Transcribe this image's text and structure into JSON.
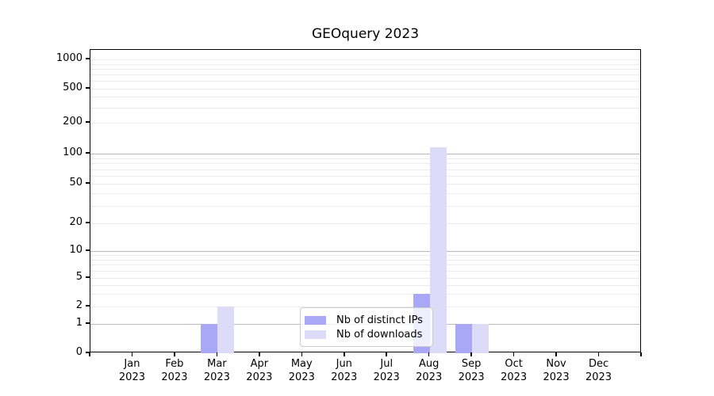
{
  "chart_data": {
    "type": "bar",
    "title": "GEOquery 2023",
    "year": "2023",
    "months": [
      "Jan",
      "Feb",
      "Mar",
      "Apr",
      "May",
      "Jun",
      "Jul",
      "Aug",
      "Sep",
      "Oct",
      "Nov",
      "Dec"
    ],
    "series": [
      {
        "name": "Nb of distinct IPs",
        "color": "#a8a8f6",
        "values": [
          0,
          0,
          1,
          0,
          0,
          0,
          0,
          3,
          1,
          0,
          0,
          0
        ]
      },
      {
        "name": "Nb of downloads",
        "color": "#dcdcf8",
        "values": [
          0,
          0,
          2,
          0,
          0,
          0,
          0,
          115,
          1,
          0,
          0,
          0
        ]
      }
    ],
    "y_axis": {
      "scale": "symlog",
      "ticks": [
        0,
        1,
        2,
        5,
        10,
        20,
        50,
        100,
        200,
        500,
        1000
      ],
      "major_grid_values": [
        1,
        10,
        100
      ],
      "range_top": 1000
    },
    "legend": {
      "position": "lower-center",
      "frame": true
    },
    "grid": "on",
    "colors": {
      "major_gridline": "#b9b9b9",
      "minor_gridline": "#ebebeb",
      "axis": "#000000"
    }
  }
}
